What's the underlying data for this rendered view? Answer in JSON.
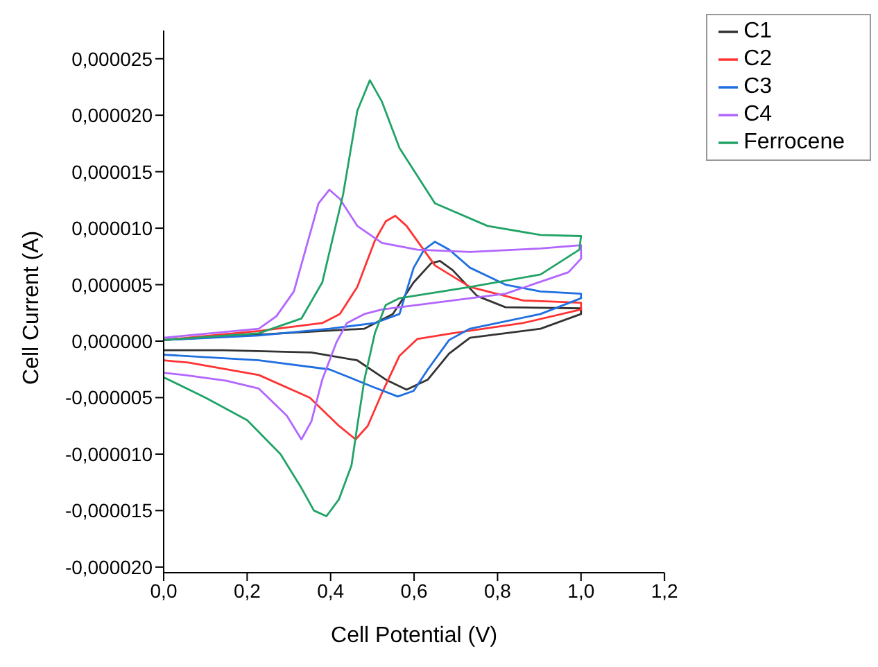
{
  "chart_data": {
    "type": "line",
    "xlabel": "Cell Potential (V)",
    "ylabel": "Cell Current (A)",
    "xlim": [
      0,
      1.2
    ],
    "xticks": [
      {
        "value": 0,
        "label": "0,0"
      },
      {
        "value": 0.2,
        "label": "0,2"
      },
      {
        "value": 0.4,
        "label": "0,4"
      },
      {
        "value": 0.6,
        "label": "0,6"
      },
      {
        "value": 0.8,
        "label": "0,8"
      },
      {
        "value": 1.0,
        "label": "1,0"
      },
      {
        "value": 1.2,
        "label": "1,2"
      }
    ],
    "ylim": [
      -2.05e-05,
      2.75e-05
    ],
    "yticks": [
      {
        "value": -2e-05,
        "label": "-0,000020"
      },
      {
        "value": -1.5e-05,
        "label": "-0,000015"
      },
      {
        "value": -1e-05,
        "label": "-0,000010"
      },
      {
        "value": -5e-06,
        "label": "-0,000005"
      },
      {
        "value": 0,
        "label": "0,000000"
      },
      {
        "value": 5e-06,
        "label": "0,000005"
      },
      {
        "value": 1e-05,
        "label": "0,000010"
      },
      {
        "value": 1.5e-05,
        "label": "0,000015"
      },
      {
        "value": 2e-05,
        "label": "0,000020"
      },
      {
        "value": 2.5e-05,
        "label": "0,000025"
      }
    ],
    "grid": false,
    "legend": "top right",
    "marker": "none",
    "line_style": "solid",
    "series": [
      {
        "name": "C1",
        "color": "#333333",
        "x": [
          0,
          0.481,
          0.549,
          0.599,
          0.641,
          0.662,
          0.692,
          0.751,
          0.819,
          1.0,
          1.0,
          0.903,
          0.734,
          0.684,
          0.633,
          0.582,
          0.532,
          0.464,
          0.354,
          0.143,
          0
        ],
        "values": [
          1e-07,
          1.1e-06,
          2.4e-06,
          5.2e-06,
          6.9e-06,
          7.1e-06,
          6.3e-06,
          4e-06,
          3e-06,
          2.9e-06,
          2.4e-06,
          1.1e-06,
          3e-07,
          -1.1e-06,
          -3.4e-06,
          -4.3e-06,
          -3.4e-06,
          -1.7e-06,
          -1e-06,
          -8e-07,
          -8e-07
        ]
      },
      {
        "name": "C2",
        "color": "#ff3333",
        "x": [
          0,
          0.228,
          0.38,
          0.422,
          0.464,
          0.506,
          0.532,
          0.555,
          0.582,
          0.65,
          0.734,
          0.861,
          1.0,
          1.0,
          0.861,
          0.692,
          0.608,
          0.565,
          0.523,
          0.489,
          0.46,
          0.42,
          0.35,
          0.228,
          0.059,
          0
        ],
        "values": [
          1e-07,
          9e-07,
          1.6e-06,
          2.4e-06,
          4.8e-06,
          8.9e-06,
          1.06e-05,
          1.11e-05,
          1.02e-05,
          6.7e-06,
          4.8e-06,
          3.6e-06,
          3.4e-06,
          2.8e-06,
          1.6e-06,
          7e-07,
          2e-07,
          -1.3e-06,
          -4.6e-06,
          -7.5e-06,
          -8.7e-06,
          -7.5e-06,
          -5e-06,
          -3e-06,
          -1.9e-06,
          -1.7e-06
        ]
      },
      {
        "name": "C3",
        "color": "#1f6fe0",
        "x": [
          0,
          0.228,
          0.397,
          0.506,
          0.565,
          0.599,
          0.624,
          0.65,
          0.684,
          0.734,
          0.819,
          0.903,
          1.0,
          1.0,
          0.903,
          0.734,
          0.684,
          0.633,
          0.599,
          0.561,
          0.498,
          0.397,
          0.228,
          0
        ],
        "values": [
          1e-07,
          5e-07,
          1.1e-06,
          1.6e-06,
          2.4e-06,
          6.5e-06,
          8.1e-06,
          8.8e-06,
          8.1e-06,
          6.5e-06,
          5e-06,
          4.4e-06,
          4.2e-06,
          3.8e-06,
          2.4e-06,
          1.1e-06,
          1e-07,
          -2.5e-06,
          -4.4e-06,
          -4.9e-06,
          -4e-06,
          -2.5e-06,
          -1.7e-06,
          -1.2e-06
        ]
      },
      {
        "name": "C4",
        "color": "#b266ff",
        "x": [
          0,
          0.228,
          0.27,
          0.312,
          0.346,
          0.371,
          0.397,
          0.422,
          0.464,
          0.523,
          0.608,
          0.734,
          0.903,
          1.0,
          1.0,
          0.97,
          0.819,
          0.65,
          0.523,
          0.481,
          0.439,
          0.414,
          0.38,
          0.354,
          0.33,
          0.295,
          0.228,
          0.15,
          0.05,
          0
        ],
        "values": [
          3e-07,
          1.1e-06,
          2.2e-06,
          4.4e-06,
          8.9e-06,
          1.22e-05,
          1.34e-05,
          1.26e-05,
          1.02e-05,
          8.7e-06,
          8.1e-06,
          7.9e-06,
          8.2e-06,
          8.5e-06,
          7.3e-06,
          6.1e-06,
          4.2e-06,
          3.4e-06,
          2.8e-06,
          2.4e-06,
          1.6e-06,
          -1e-07,
          -3.4e-06,
          -7.1e-06,
          -8.7e-06,
          -6.6e-06,
          -4.2e-06,
          -3.5e-06,
          -3e-06,
          -2.8e-06
        ]
      },
      {
        "name": "Ferrocene",
        "color": "#21a366",
        "x": [
          0,
          0.228,
          0.33,
          0.38,
          0.43,
          0.464,
          0.494,
          0.523,
          0.565,
          0.65,
          0.776,
          0.903,
          1.0,
          0.996,
          0.903,
          0.734,
          0.565,
          0.532,
          0.506,
          0.481,
          0.464,
          0.45,
          0.42,
          0.39,
          0.36,
          0.33,
          0.28,
          0.2,
          0.1,
          0
        ],
        "values": [
          1e-07,
          7e-07,
          2e-06,
          5.2e-06,
          1.3e-05,
          2.04e-05,
          2.31e-05,
          2.12e-05,
          1.71e-05,
          1.22e-05,
          1.02e-05,
          9.4e-06,
          9.3e-06,
          8.1e-06,
          5.9e-06,
          4.8e-06,
          3.8e-06,
          3.2e-06,
          7e-07,
          -3.4e-06,
          -7.5e-06,
          -1.1e-05,
          -1.4e-05,
          -1.55e-05,
          -1.5e-05,
          -1.3e-05,
          -1e-05,
          -7e-06,
          -5e-06,
          -3.2e-06
        ]
      }
    ]
  }
}
